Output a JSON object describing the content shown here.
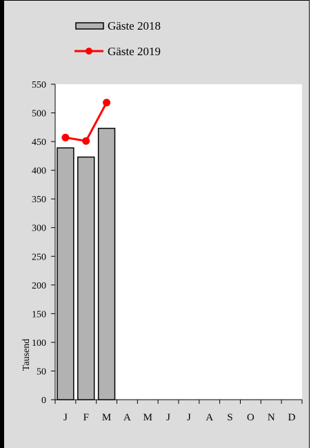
{
  "chart_data": {
    "type": "bar",
    "categories": [
      "J",
      "F",
      "M",
      "A",
      "M",
      "J",
      "J",
      "A",
      "S",
      "O",
      "N",
      "D"
    ],
    "series": [
      {
        "name": "Gäste 2018",
        "kind": "bar",
        "color": "#b2b2b2",
        "values": [
          439,
          423,
          473,
          null,
          null,
          null,
          null,
          null,
          null,
          null,
          null,
          null
        ]
      },
      {
        "name": "Gäste 2019",
        "kind": "line",
        "color": "#ff0000",
        "values": [
          457,
          451,
          518,
          null,
          null,
          null,
          null,
          null,
          null,
          null,
          null,
          null
        ]
      }
    ],
    "ylabel": "Tausend",
    "ylim": [
      0,
      550
    ],
    "yticks": [
      "0",
      "50",
      "100",
      "150",
      "200",
      "250",
      "300",
      "350",
      "400",
      "450",
      "500",
      "550"
    ],
    "grid": false,
    "legend": "top"
  }
}
